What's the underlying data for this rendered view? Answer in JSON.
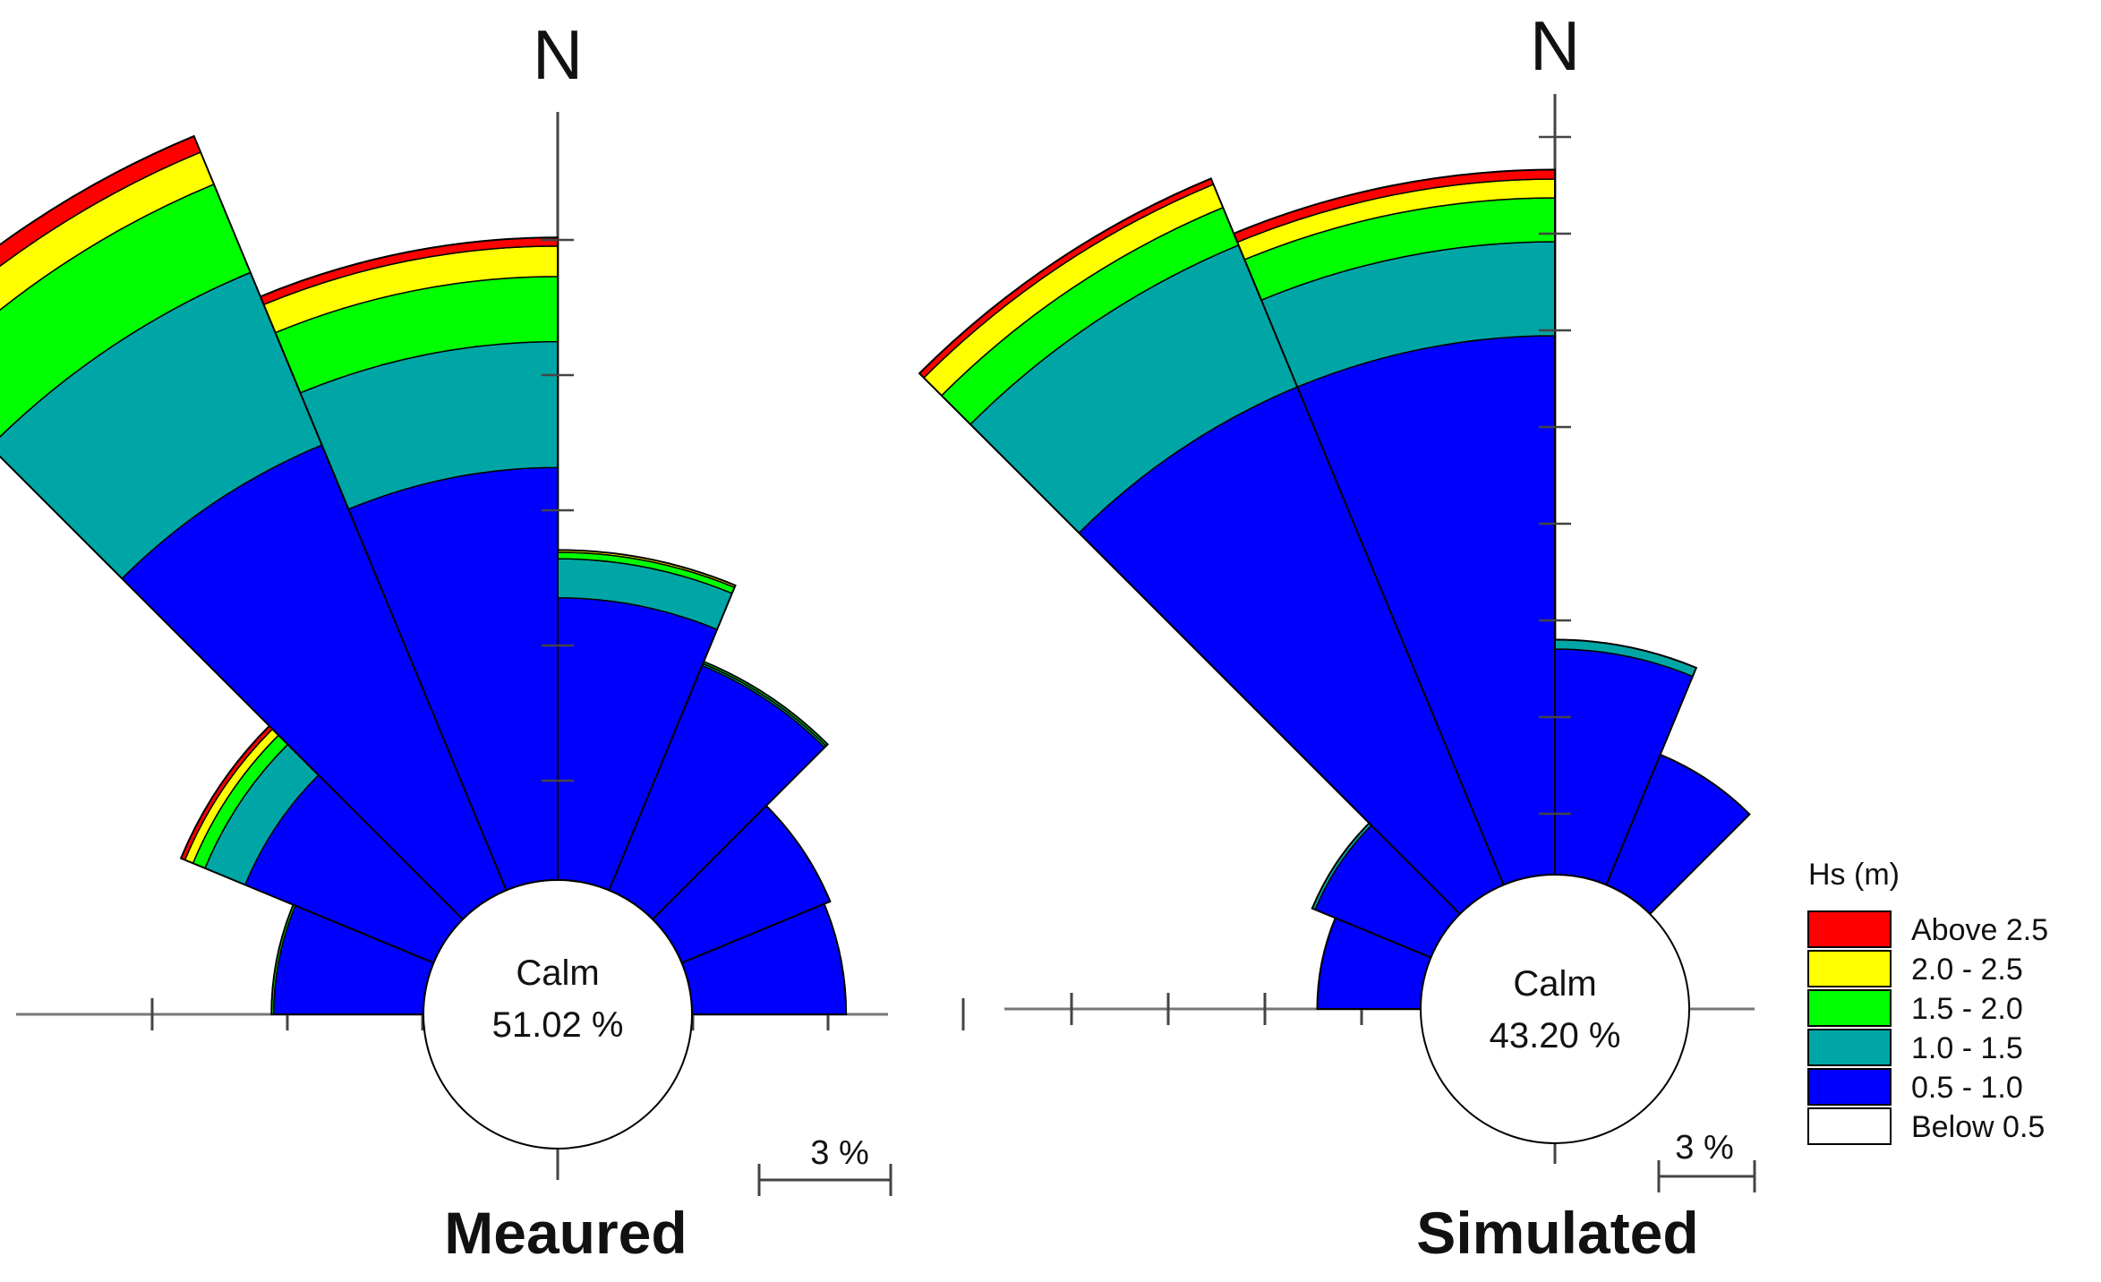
{
  "chart_data": [
    {
      "type": "rose",
      "title": "Meaured",
      "north_label": "N",
      "calm_label": "Calm",
      "calm_value": "51.02 %",
      "scale_label": "3 %",
      "direction_labels_deg": [
        -56.25,
        -33.75,
        -11.25,
        11.25,
        33.75,
        56.25,
        -78.75,
        78.75
      ],
      "legend_title": "Hs (m)",
      "bins": [
        {
          "label": "Above 2.5",
          "color": "#ff0000"
        },
        {
          "label": "2.0 - 2.5",
          "color": "#ffff00"
        },
        {
          "label": "1.5 - 2.0",
          "color": "#00ff00"
        },
        {
          "label": "1.0 - 1.5",
          "color": "#00a6a6"
        },
        {
          "label": "0.5 - 1.0",
          "color": "#0000ff"
        },
        {
          "label": "Below 0.5",
          "color": "#ffffff"
        }
      ],
      "sectors": [
        {
          "direction": -56.25,
          "cumulative_percent": {
            "0.5 - 1.0": 4.7,
            "1.0 - 1.5": 5.7,
            "1.5 - 2.0": 6.0,
            "2.0 - 2.5": 6.2,
            "Above 2.5": 6.3
          }
        },
        {
          "direction": -33.75,
          "cumulative_percent": {
            "0.5 - 1.0": 11.1,
            "1.0 - 1.5": 15.4,
            "1.5 - 2.0": 17.6,
            "2.0 - 2.5": 18.4,
            "Above 2.5": 18.8
          }
        },
        {
          "direction": -11.25,
          "cumulative_percent": {
            "0.5 - 1.0": 9.5,
            "1.0 - 1.5": 12.4,
            "1.5 - 2.0": 13.9,
            "2.0 - 2.5": 14.6,
            "Above 2.5": 14.8
          }
        },
        {
          "direction": 11.25,
          "cumulative_percent": {
            "0.5 - 1.0": 6.5,
            "1.0 - 1.5": 7.4,
            "1.5 - 2.0": 7.55,
            "2.0 - 2.5": 7.6,
            "Above 2.5": 7.6
          }
        },
        {
          "direction": 33.75,
          "cumulative_percent": {
            "0.5 - 1.0": 5.6,
            "1.0 - 1.5": 5.65,
            "1.5 - 2.0": 5.7,
            "2.0 - 2.5": 5.7,
            "Above 2.5": 5.7
          }
        },
        {
          "direction": 56.25,
          "cumulative_percent": {
            "0.5 - 1.0": 3.7,
            "1.0 - 1.5": 3.7,
            "1.5 - 2.0": 3.7,
            "2.0 - 2.5": 3.7,
            "Above 2.5": 3.7
          }
        },
        {
          "direction": -78.75,
          "cumulative_percent": {
            "0.5 - 1.0": 3.45,
            "1.0 - 1.5": 3.45,
            "1.5 - 2.0": 3.5,
            "2.0 - 2.5": 3.5,
            "Above 2.5": 3.5
          }
        },
        {
          "direction": 78.75,
          "cumulative_percent": {
            "0.5 - 1.0": 3.55,
            "1.0 - 1.5": 3.55,
            "1.5 - 2.0": 3.55,
            "2.0 - 2.5": 3.55,
            "Above 2.5": 3.55
          }
        }
      ]
    },
    {
      "type": "rose",
      "title": "Simulated",
      "north_label": "N",
      "calm_label": "Calm",
      "calm_value": "43.20 %",
      "scale_label": "3 %",
      "legend_title": "Hs (m)",
      "bins": [
        {
          "label": "Above 2.5",
          "color": "#ff0000"
        },
        {
          "label": "2.0 - 2.5",
          "color": "#ffff00"
        },
        {
          "label": "1.5 - 2.0",
          "color": "#00ff00"
        },
        {
          "label": "1.0 - 1.5",
          "color": "#00a6a6"
        },
        {
          "label": "0.5 - 1.0",
          "color": "#0000ff"
        },
        {
          "label": "Below 0.5",
          "color": "#ffffff"
        }
      ],
      "sectors": [
        {
          "direction": -56.25,
          "cumulative_percent": {
            "0.5 - 1.0": 4.0,
            "1.0 - 1.5": 4.1,
            "1.5 - 2.0": 4.1,
            "2.0 - 2.5": 4.1,
            "Above 2.5": 4.1
          }
        },
        {
          "direction": -33.75,
          "cumulative_percent": {
            "0.5 - 1.0": 17.2,
            "1.0 - 1.5": 22.1,
            "1.5 - 2.0": 23.4,
            "2.0 - 2.5": 24.2,
            "Above 2.5": 24.4
          }
        },
        {
          "direction": -11.25,
          "cumulative_percent": {
            "0.5 - 1.0": 17.2,
            "1.0 - 1.5": 20.2,
            "1.5 - 2.0": 21.6,
            "2.0 - 2.5": 22.2,
            "Above 2.5": 22.5
          }
        },
        {
          "direction": 11.25,
          "cumulative_percent": {
            "0.5 - 1.0": 7.2,
            "1.0 - 1.5": 7.5,
            "1.5 - 2.0": 7.5,
            "2.0 - 2.5": 7.5,
            "Above 2.5": 7.5
          }
        },
        {
          "direction": 33.75,
          "cumulative_percent": {
            "0.5 - 1.0": 4.5,
            "1.0 - 1.5": 4.5,
            "1.5 - 2.0": 4.5,
            "2.0 - 2.5": 4.5,
            "Above 2.5": 4.5
          }
        },
        {
          "direction": -78.75,
          "cumulative_percent": {
            "0.5 - 1.0": 3.3,
            "1.0 - 1.5": 3.3,
            "1.5 - 2.0": 3.3,
            "2.0 - 2.5": 3.3,
            "Above 2.5": 3.3
          }
        }
      ]
    }
  ]
}
